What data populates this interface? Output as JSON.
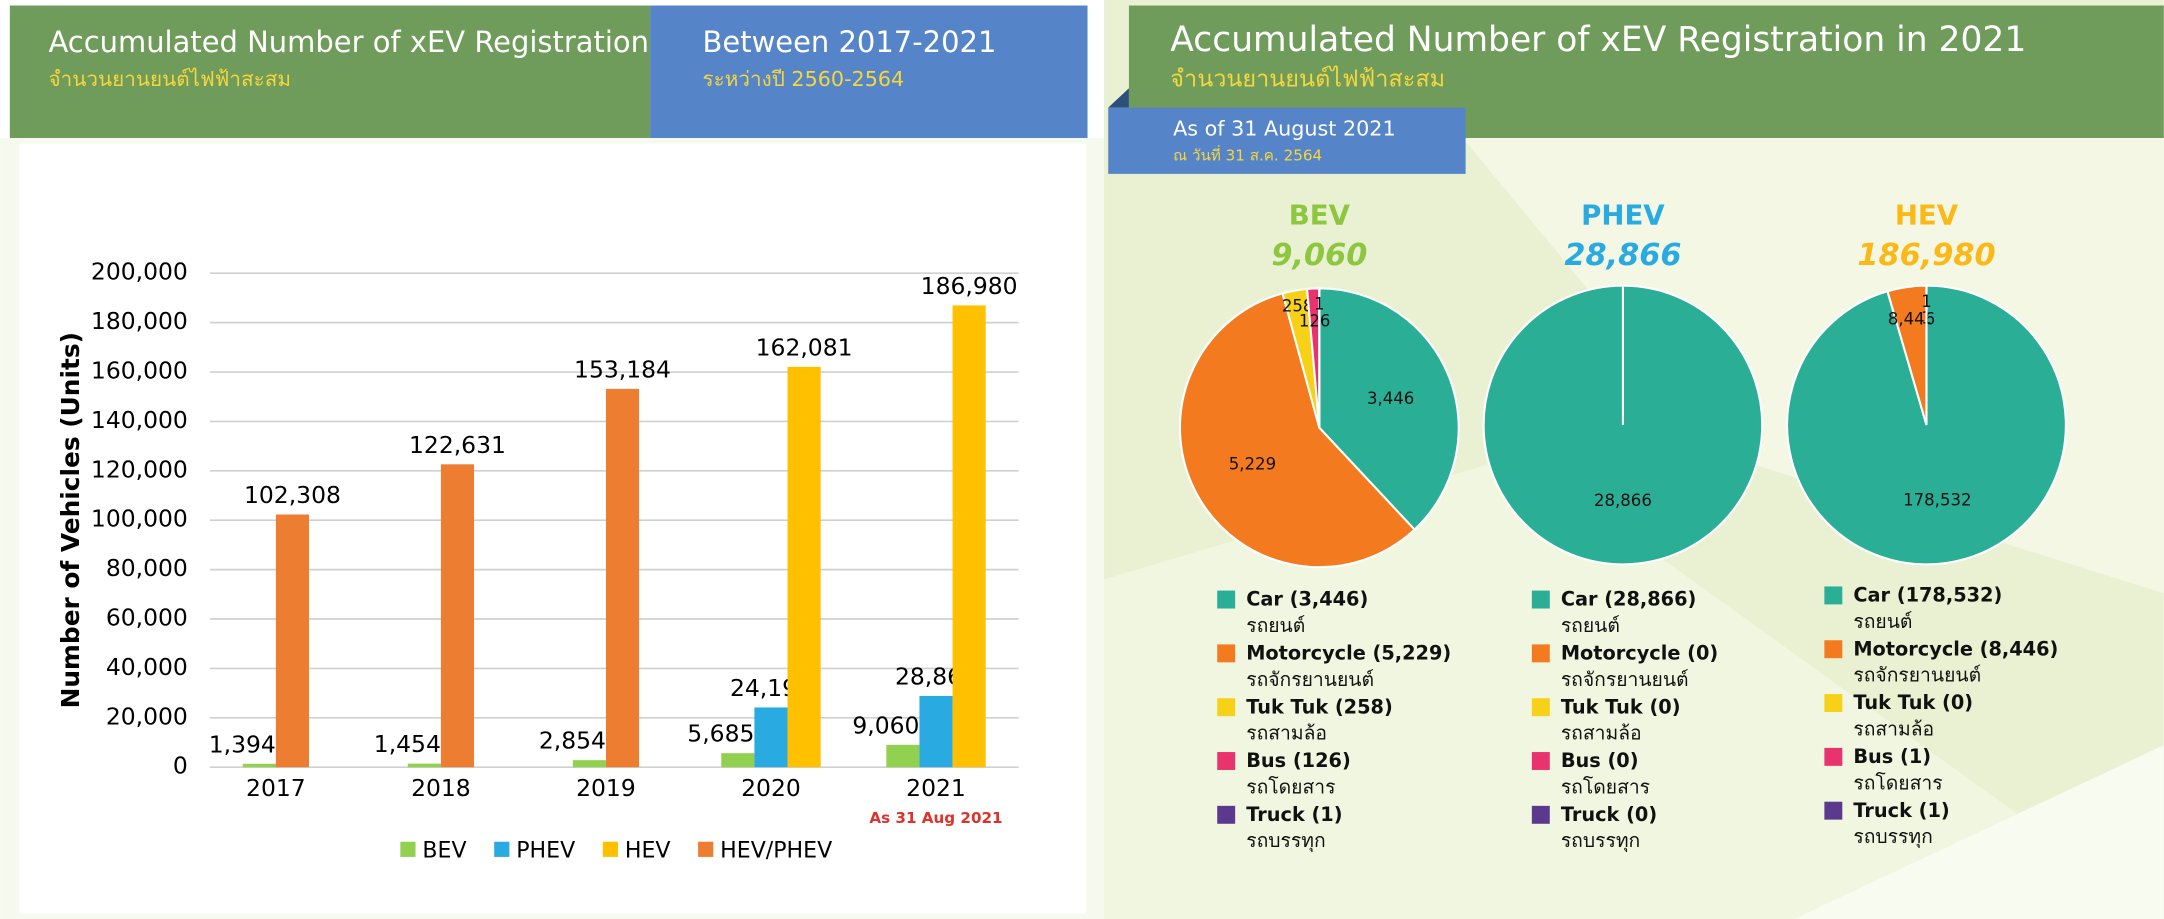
{
  "header": {
    "left_title": "Accumulated Number of xEV Registration",
    "left_subtitle": "จำนวนยานยนต์ไฟฟ้าสะสม",
    "period_title": "Between 2017-2021",
    "period_subtitle": "ระหว่างปี 2560-2564",
    "right_title": "Accumulated Number of xEV Registration in 2021",
    "right_subtitle": "จำนวนยานยนต์ไฟฟ้าสะสม",
    "asof_title": "As of 31 August 2021",
    "asof_subtitle": "ณ วันที่ 31 ส.ค. 2564"
  },
  "chart_data": [
    {
      "type": "bar",
      "ylabel": "Number of Vehicles (Units)",
      "annotation": "As 31 Aug 2021",
      "categories": [
        "2017",
        "2018",
        "2019",
        "2020",
        "2021"
      ],
      "series": [
        {
          "name": "BEV",
          "color": "#92d050",
          "values": [
            1394,
            1454,
            2854,
            5685,
            9060
          ],
          "value_labels": [
            "1,394",
            "1,454",
            "2,854",
            "5,685",
            "9,060"
          ]
        },
        {
          "name": "PHEV",
          "color": "#29abe2",
          "values": [
            null,
            null,
            null,
            24191,
            28866
          ],
          "value_labels": [
            null,
            null,
            null,
            "24,191",
            "28,866"
          ]
        },
        {
          "name": "HEV",
          "color": "#ffc000",
          "values": [
            null,
            null,
            null,
            162081,
            186980
          ],
          "value_labels": [
            null,
            null,
            null,
            "162,081",
            "186,980"
          ]
        },
        {
          "name": "HEV/PHEV",
          "color": "#ed7d31",
          "values": [
            102308,
            122631,
            153184,
            null,
            null
          ],
          "value_labels": [
            "102,308",
            "122,631",
            "153,184",
            null,
            null
          ]
        }
      ],
      "ylim": [
        0,
        200000
      ],
      "yticks": [
        0,
        {
          "value": 20000,
          "label": "20,000"
        },
        {
          "value": 40000,
          "label": "40,000"
        },
        {
          "value": 60000,
          "label": "60,000"
        },
        {
          "value": 80000,
          "label": "80,000"
        },
        {
          "value": 100000,
          "label": "100,000"
        },
        {
          "value": 120000,
          "label": "120,000"
        },
        {
          "value": 140000,
          "label": "140,000"
        },
        {
          "value": 160000,
          "label": "160,000"
        },
        {
          "value": 180000,
          "label": "180,000"
        },
        {
          "value": 200000,
          "label": "200,000"
        }
      ],
      "grid": true,
      "legend": "bottom"
    },
    {
      "type": "pie",
      "title": "BEV",
      "title_color": "#8dc63f",
      "subtitle": "9,060",
      "categories": [
        "Car (3,446)",
        "Motorcycle (5,229)",
        "Tuk Tuk (258)",
        "Bus (126)",
        "Truck (1)"
      ],
      "category_notes": [
        "รถยนต์",
        "รถจักรยานยนต์",
        "รถสามล้อ",
        "รถโดยสาร",
        "รถบรรทุก"
      ],
      "values": [
        3446,
        5229,
        258,
        126,
        1
      ],
      "value_labels": [
        "3,446",
        "5,229",
        "258",
        "126",
        "1"
      ],
      "colors": [
        "#2aae96",
        "#f47a20",
        "#f7d117",
        "#e9336e",
        "#5b3a8e"
      ]
    },
    {
      "type": "pie",
      "title": "PHEV",
      "title_color": "#29abe2",
      "subtitle": "28,866",
      "categories": [
        "Car (28,866)",
        "Motorcycle (0)",
        "Tuk Tuk (0)",
        "Bus (0)",
        "Truck (0)"
      ],
      "category_notes": [
        "รถยนต์",
        "รถจักรยานยนต์",
        "รถสามล้อ",
        "รถโดยสาร",
        "รถบรรทุก"
      ],
      "values": [
        28866,
        0,
        0,
        0,
        0
      ],
      "value_labels": [
        "28,866",
        null,
        null,
        null,
        null
      ],
      "colors": [
        "#2aae96",
        "#f47a20",
        "#f7d117",
        "#e9336e",
        "#5b3a8e"
      ]
    },
    {
      "type": "pie",
      "title": "HEV",
      "title_color": "#fbb917",
      "subtitle": "186,980",
      "categories": [
        "Car (178,532)",
        "Motorcycle (8,446)",
        "Tuk Tuk (0)",
        "Bus (1)",
        "Truck (1)"
      ],
      "category_notes": [
        "รถยนต์",
        "รถจักรยานยนต์",
        "รถสามล้อ",
        "รถโดยสาร",
        "รถบรรทุก"
      ],
      "values": [
        178532,
        8446,
        0,
        1,
        1
      ],
      "value_labels": [
        "178,532",
        "8,446",
        null,
        "1",
        "1"
      ],
      "colors": [
        "#2aae96",
        "#f47a20",
        "#f7d117",
        "#e9336e",
        "#5b3a8e"
      ]
    }
  ]
}
